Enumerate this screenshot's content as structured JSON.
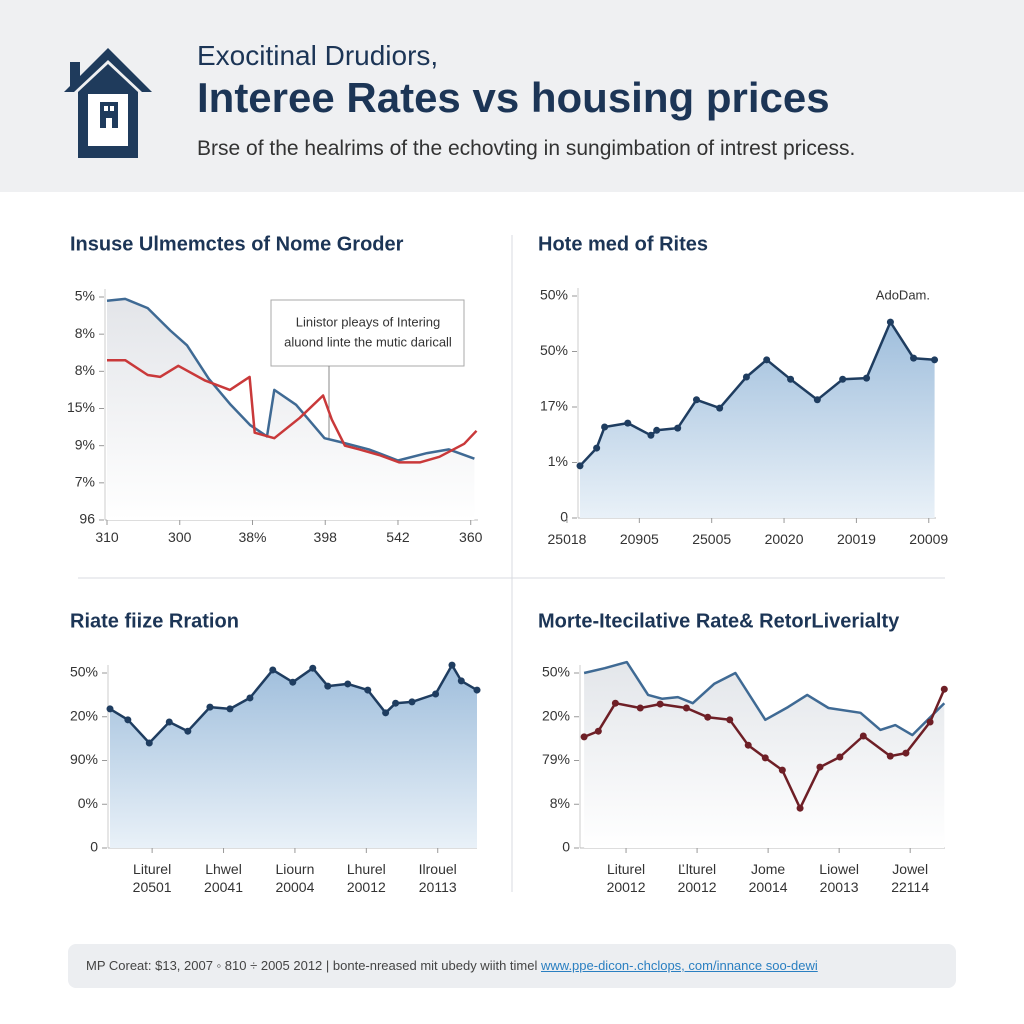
{
  "header": {
    "kicker": "Exocitinal Drudiors,",
    "title": "Interee Rates vs housing prices",
    "subtitle": "Brse of the healrims of the echovting in sungimbation of intrest pricess."
  },
  "chart_data": [
    {
      "type": "line",
      "title": "Insuse Ulmemctes of Nome Groder",
      "annotations": [
        "Linistor pleays of Intering",
        "aluond linte the mutic daricall"
      ],
      "xlim": [
        0,
        5.1
      ],
      "ylim": [
        0,
        6
      ],
      "xticks": [
        {
          "value": 0,
          "label": "310"
        },
        {
          "value": 1,
          "label": "300"
        },
        {
          "value": 2,
          "label": "38%"
        },
        {
          "value": 3,
          "label": "398"
        },
        {
          "value": 4,
          "label": "542"
        },
        {
          "value": 5,
          "label": "360"
        }
      ],
      "yticks": [
        {
          "value": 6,
          "label": "5%"
        },
        {
          "value": 5,
          "label": "8%"
        },
        {
          "value": 4,
          "label": "8%"
        },
        {
          "value": 3,
          "label": "15%"
        },
        {
          "value": 2,
          "label": "9%"
        },
        {
          "value": 1,
          "label": "7%"
        },
        {
          "value": 0,
          "label": "96"
        }
      ],
      "series": [
        {
          "color": "#3f6a94",
          "area": true,
          "markers": false,
          "x": [
            0,
            0.25,
            0.56,
            0.87,
            1.1,
            1.4,
            1.7,
            1.97,
            2.2,
            2.3,
            2.6,
            2.99,
            3.2,
            3.6,
            4.0,
            4.4,
            4.7,
            5.05
          ],
          "values": [
            5.9,
            5.95,
            5.7,
            5.1,
            4.7,
            3.8,
            3.1,
            2.55,
            2.25,
            3.5,
            3.1,
            2.2,
            2.1,
            1.9,
            1.6,
            1.8,
            1.9,
            1.65
          ]
        },
        {
          "color": "#c9393a",
          "area": false,
          "markers": false,
          "x": [
            0,
            0.25,
            0.56,
            0.73,
            0.98,
            1.35,
            1.69,
            1.96,
            2.03,
            2.3,
            2.65,
            2.97,
            3.09,
            3.27,
            3.47,
            3.74,
            4.02,
            4.3,
            4.57,
            4.91,
            5.08
          ],
          "values": [
            4.3,
            4.3,
            3.9,
            3.85,
            4.15,
            3.75,
            3.5,
            3.85,
            2.35,
            2.2,
            2.75,
            3.35,
            2.7,
            2.0,
            1.9,
            1.75,
            1.55,
            1.55,
            1.7,
            2.05,
            2.4
          ]
        }
      ]
    },
    {
      "type": "line",
      "title": "Hote med of Rites",
      "annotations": [
        "AdoDam."
      ],
      "xlim": [
        0.18,
        5.1
      ],
      "ylim": [
        0,
        4
      ],
      "xticks": [
        {
          "value": 0,
          "label": "25018"
        },
        {
          "value": 1,
          "label": "20905"
        },
        {
          "value": 2,
          "label": "25005"
        },
        {
          "value": 3,
          "label": "20020"
        },
        {
          "value": 4,
          "label": "20019"
        },
        {
          "value": 5,
          "label": "20009"
        }
      ],
      "yticks": [
        {
          "value": 4,
          "label": "50%"
        },
        {
          "value": 3,
          "label": "50%"
        },
        {
          "value": 2,
          "label": "17%"
        },
        {
          "value": 1,
          "label": "1%"
        },
        0
      ],
      "series": [
        {
          "color": "#1f3d60",
          "area": true,
          "markers": true,
          "x": [
            0.18,
            0.41,
            0.52,
            0.84,
            1.16,
            1.24,
            1.53,
            1.79,
            2.11,
            2.48,
            2.76,
            3.09,
            3.46,
            3.81,
            4.14,
            4.47,
            4.79,
            5.08
          ],
          "values": [
            0.94,
            1.26,
            1.64,
            1.71,
            1.49,
            1.58,
            1.62,
            2.13,
            1.98,
            2.54,
            2.85,
            2.5,
            2.13,
            2.5,
            2.52,
            3.53,
            2.88,
            2.85
          ]
        }
      ]
    },
    {
      "type": "line",
      "title": "Riate fiize Rration",
      "xlim": [
        -0.59,
        4.55
      ],
      "ylim": [
        0,
        4
      ],
      "xticks": [
        {
          "value": 0,
          "label": "Liturel\n20501"
        },
        {
          "value": 1,
          "label": "Lhwel\n20041"
        },
        {
          "value": 2,
          "label": "Liourn\n20004"
        },
        {
          "value": 3,
          "label": "Lhurel\n20012"
        },
        {
          "value": 4,
          "label": "Ilrouel\n20113"
        }
      ],
      "yticks": [
        {
          "value": 4,
          "label": "50%"
        },
        {
          "value": 3,
          "label": "20%"
        },
        {
          "value": 2,
          "label": "90%"
        },
        {
          "value": 1,
          "label": "0%"
        },
        0
      ],
      "series": [
        {
          "color": "#1f3d60",
          "area": true,
          "markers": true,
          "x": [
            -0.59,
            -0.34,
            -0.04,
            0.24,
            0.5,
            0.81,
            1.09,
            1.37,
            1.69,
            1.97,
            2.25,
            2.46,
            2.74,
            3.02,
            3.27,
            3.41,
            3.64,
            3.97,
            4.2,
            4.33,
            4.55
          ],
          "values": [
            3.18,
            2.93,
            2.4,
            2.88,
            2.67,
            3.22,
            3.18,
            3.43,
            4.07,
            3.79,
            4.11,
            3.7,
            3.75,
            3.61,
            3.09,
            3.31,
            3.34,
            3.52,
            4.18,
            3.82,
            3.61
          ]
        }
      ]
    },
    {
      "type": "line",
      "title": "Morte-Itecilative Rate& RetorLiverialty",
      "xlim": [
        -0.62,
        4.49
      ],
      "ylim": [
        0,
        4
      ],
      "xticks": [
        {
          "value": 0,
          "label": "Liturel\n20012"
        },
        {
          "value": 1,
          "label": "Ľlturel\n20012"
        },
        {
          "value": 2,
          "label": "Jome\n20014"
        },
        {
          "value": 3,
          "label": "Liowel\n20013"
        },
        {
          "value": 4,
          "label": "Jowel\n22114"
        }
      ],
      "yticks": [
        {
          "value": 4,
          "label": "50%"
        },
        {
          "value": 3,
          "label": "20%"
        },
        {
          "value": 2,
          "label": "79%"
        },
        {
          "value": 1,
          "label": "8%"
        },
        0
      ],
      "series": [
        {
          "color": "#3f6a94",
          "area": true,
          "markers": false,
          "x": [
            -0.59,
            -0.3,
            0.01,
            0.31,
            0.51,
            0.73,
            0.94,
            1.24,
            1.54,
            1.96,
            2.28,
            2.55,
            2.85,
            3.3,
            3.58,
            3.79,
            4.03,
            4.48
          ],
          "values": [
            4.0,
            4.11,
            4.25,
            3.5,
            3.41,
            3.45,
            3.31,
            3.75,
            4.0,
            2.93,
            3.22,
            3.5,
            3.2,
            3.09,
            2.7,
            2.81,
            2.58,
            3.31
          ]
        },
        {
          "color": "#6e1f26",
          "area": false,
          "markers": true,
          "x": [
            -0.59,
            -0.39,
            -0.15,
            0.2,
            0.48,
            0.85,
            1.15,
            1.46,
            1.72,
            1.96,
            2.2,
            2.45,
            2.73,
            3.01,
            3.34,
            3.72,
            3.94,
            4.28,
            4.48
          ],
          "values": [
            2.54,
            2.67,
            3.31,
            3.2,
            3.29,
            3.2,
            2.99,
            2.93,
            2.35,
            2.06,
            1.78,
            0.91,
            1.85,
            2.08,
            2.56,
            2.1,
            2.17,
            2.88,
            3.63
          ]
        }
      ]
    }
  ],
  "footer": {
    "text": "MP Coreat: $13, 2007 ◦ 810 ÷ 2005 2012 | bonte-nreased mit ubedy wiith timel ",
    "link": "www.ppe-dicon-.chclops, com/innance soo-dewi"
  }
}
